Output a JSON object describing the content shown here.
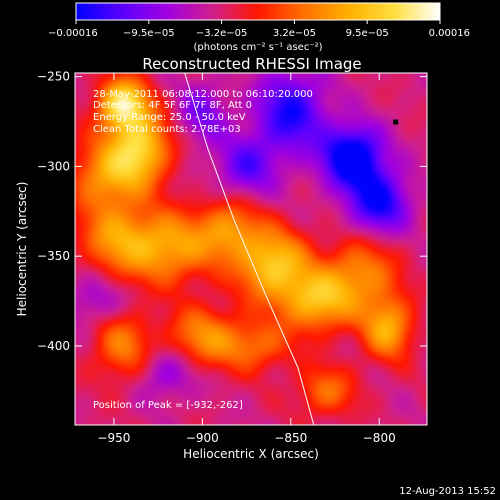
{
  "chart_data": {
    "type": "heatmap",
    "title": "Reconstructed RHESSI Image",
    "xlabel": "Heliocentric X (arcsec)",
    "ylabel": "Heliocentric Y (arcsec)",
    "xlim": [
      -972,
      -773
    ],
    "ylim": [
      -444,
      -248
    ],
    "x_ticks": [
      -950,
      -900,
      -850,
      -800
    ],
    "x_tick_labels": [
      "−950",
      "−900",
      "−850",
      "−800"
    ],
    "y_ticks": [
      -250,
      -300,
      -350,
      -400
    ],
    "y_tick_labels": [
      "−250",
      "−300",
      "−350",
      "−400"
    ],
    "colorbar": {
      "tick_labels": [
        "−0.00016",
        "−9.5e−05",
        "−3.2e−05",
        "3.2e−05",
        "9.5e−05",
        "0.00016"
      ],
      "range": [
        -0.00016,
        0.00016
      ],
      "unit_label": "(photons cm⁻² s⁻¹ asec⁻²)",
      "colors": [
        "#0000ff",
        "#5a00ff",
        "#a000e0",
        "#d0208c",
        "#ff1800",
        "#ff7000",
        "#ffb000",
        "#ffe040",
        "#ffffff"
      ]
    },
    "annotations": [
      "28-May-2011 06:08:12.000 to 06:10:20.000",
      "Detectors: 4F 5F 6F 7F 8F, Att 0",
      "Energy Range: 25.0 - 50.0 keV",
      "Clean    Total counts: 2.78E+03"
    ],
    "peak_label": "Position of Peak = [-932,-262]",
    "peak": [
      -932,
      -262
    ],
    "limb_points": [
      [
        -910,
        -248
      ],
      [
        -897,
        -290
      ],
      [
        -882,
        -330
      ],
      [
        -864,
        -372
      ],
      [
        -846,
        -412
      ],
      [
        -837,
        -444
      ]
    ],
    "blobs": [
      {
        "x": -945,
        "y": -265,
        "sx": 10,
        "sy": 10,
        "a": 1.0
      },
      {
        "x": -935,
        "y": -290,
        "sx": 12,
        "sy": 14,
        "a": 0.85
      },
      {
        "x": -955,
        "y": -305,
        "sx": 14,
        "sy": 14,
        "a": 0.6
      },
      {
        "x": -920,
        "y": -345,
        "sx": 18,
        "sy": 14,
        "a": 0.7
      },
      {
        "x": -950,
        "y": -340,
        "sx": 14,
        "sy": 14,
        "a": 0.5
      },
      {
        "x": -885,
        "y": -335,
        "sx": 12,
        "sy": 12,
        "a": 0.55
      },
      {
        "x": -860,
        "y": -355,
        "sx": 14,
        "sy": 14,
        "a": 0.85
      },
      {
        "x": -835,
        "y": -375,
        "sx": 14,
        "sy": 12,
        "a": 0.75
      },
      {
        "x": -810,
        "y": -360,
        "sx": 14,
        "sy": 14,
        "a": 0.55
      },
      {
        "x": -795,
        "y": -390,
        "sx": 10,
        "sy": 12,
        "a": 0.7
      },
      {
        "x": -900,
        "y": -395,
        "sx": 14,
        "sy": 12,
        "a": 0.55
      },
      {
        "x": -945,
        "y": -400,
        "sx": 12,
        "sy": 14,
        "a": 0.5
      },
      {
        "x": -870,
        "y": -400,
        "sx": 14,
        "sy": 10,
        "a": 0.45
      },
      {
        "x": -830,
        "y": -425,
        "sx": 12,
        "sy": 10,
        "a": 0.45
      },
      {
        "x": -850,
        "y": -270,
        "sx": 14,
        "sy": 16,
        "a": -0.7
      },
      {
        "x": -815,
        "y": -295,
        "sx": 12,
        "sy": 12,
        "a": -1.0
      },
      {
        "x": -800,
        "y": -320,
        "sx": 12,
        "sy": 12,
        "a": -0.75
      },
      {
        "x": -875,
        "y": -300,
        "sx": 12,
        "sy": 12,
        "a": -0.5
      },
      {
        "x": -900,
        "y": -270,
        "sx": 10,
        "sy": 12,
        "a": -0.4
      },
      {
        "x": -920,
        "y": -415,
        "sx": 12,
        "sy": 10,
        "a": -0.35
      },
      {
        "x": -960,
        "y": -375,
        "sx": 12,
        "sy": 10,
        "a": -0.3
      }
    ],
    "base_level": -0.22
  },
  "footer": {
    "timestamp": "12-Aug-2013 15:52"
  }
}
